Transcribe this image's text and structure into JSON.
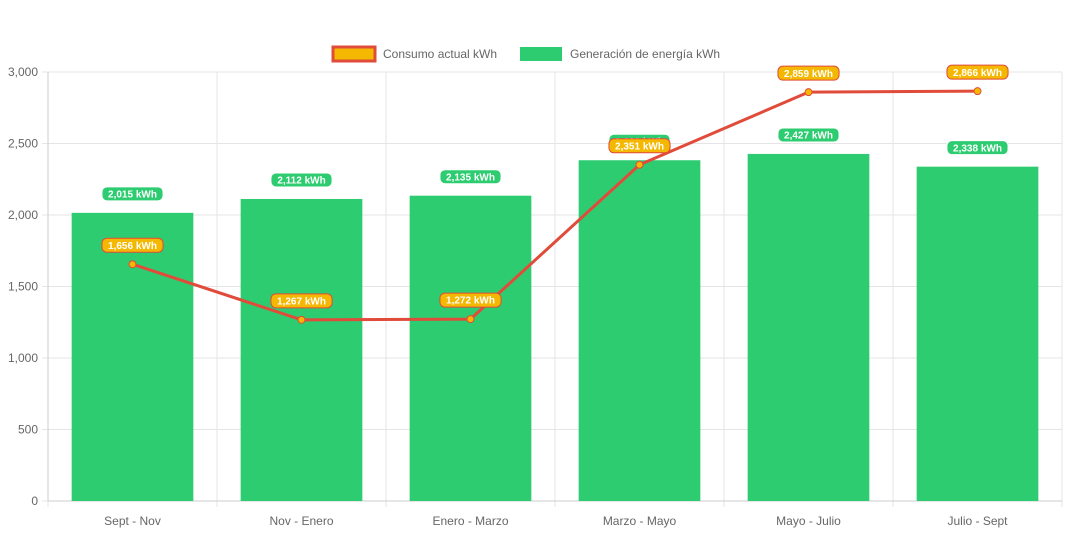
{
  "chart_data": {
    "type": "bar",
    "categories": [
      "Sept - Nov",
      "Nov - Enero",
      "Enero - Marzo",
      "Marzo - Mayo",
      "Mayo - Julio",
      "Julio - Sept"
    ],
    "ylim": [
      0,
      3000
    ],
    "yticks": [
      0,
      500,
      1000,
      1500,
      2000,
      2500,
      3000
    ],
    "ytick_labels": [
      "0",
      "500",
      "1,000",
      "1,500",
      "2,000",
      "2,500",
      "3,000"
    ],
    "grid": true,
    "legend_position": "top",
    "series": [
      {
        "name": "Consumo actual kWh",
        "type": "line",
        "values": [
          1656,
          1267,
          1272,
          2351,
          2859,
          2866
        ],
        "labels": [
          "1,656 kWh",
          "1,267 kWh",
          "1,272 kWh",
          "2,351 kWh",
          "2,859 kWh",
          "2,866 kWh"
        ],
        "color": "#e04b3a",
        "point_color": "#f5b800"
      },
      {
        "name": "Generación de energía kWh",
        "type": "bar",
        "values": [
          2015,
          2112,
          2135,
          2383,
          2427,
          2338
        ],
        "labels": [
          "2,015 kWh",
          "2,112 kWh",
          "2,135 kWh",
          "2,383 kWh",
          "2,427 kWh",
          "2,338 kWh"
        ],
        "color": "#2ecc71"
      }
    ]
  }
}
